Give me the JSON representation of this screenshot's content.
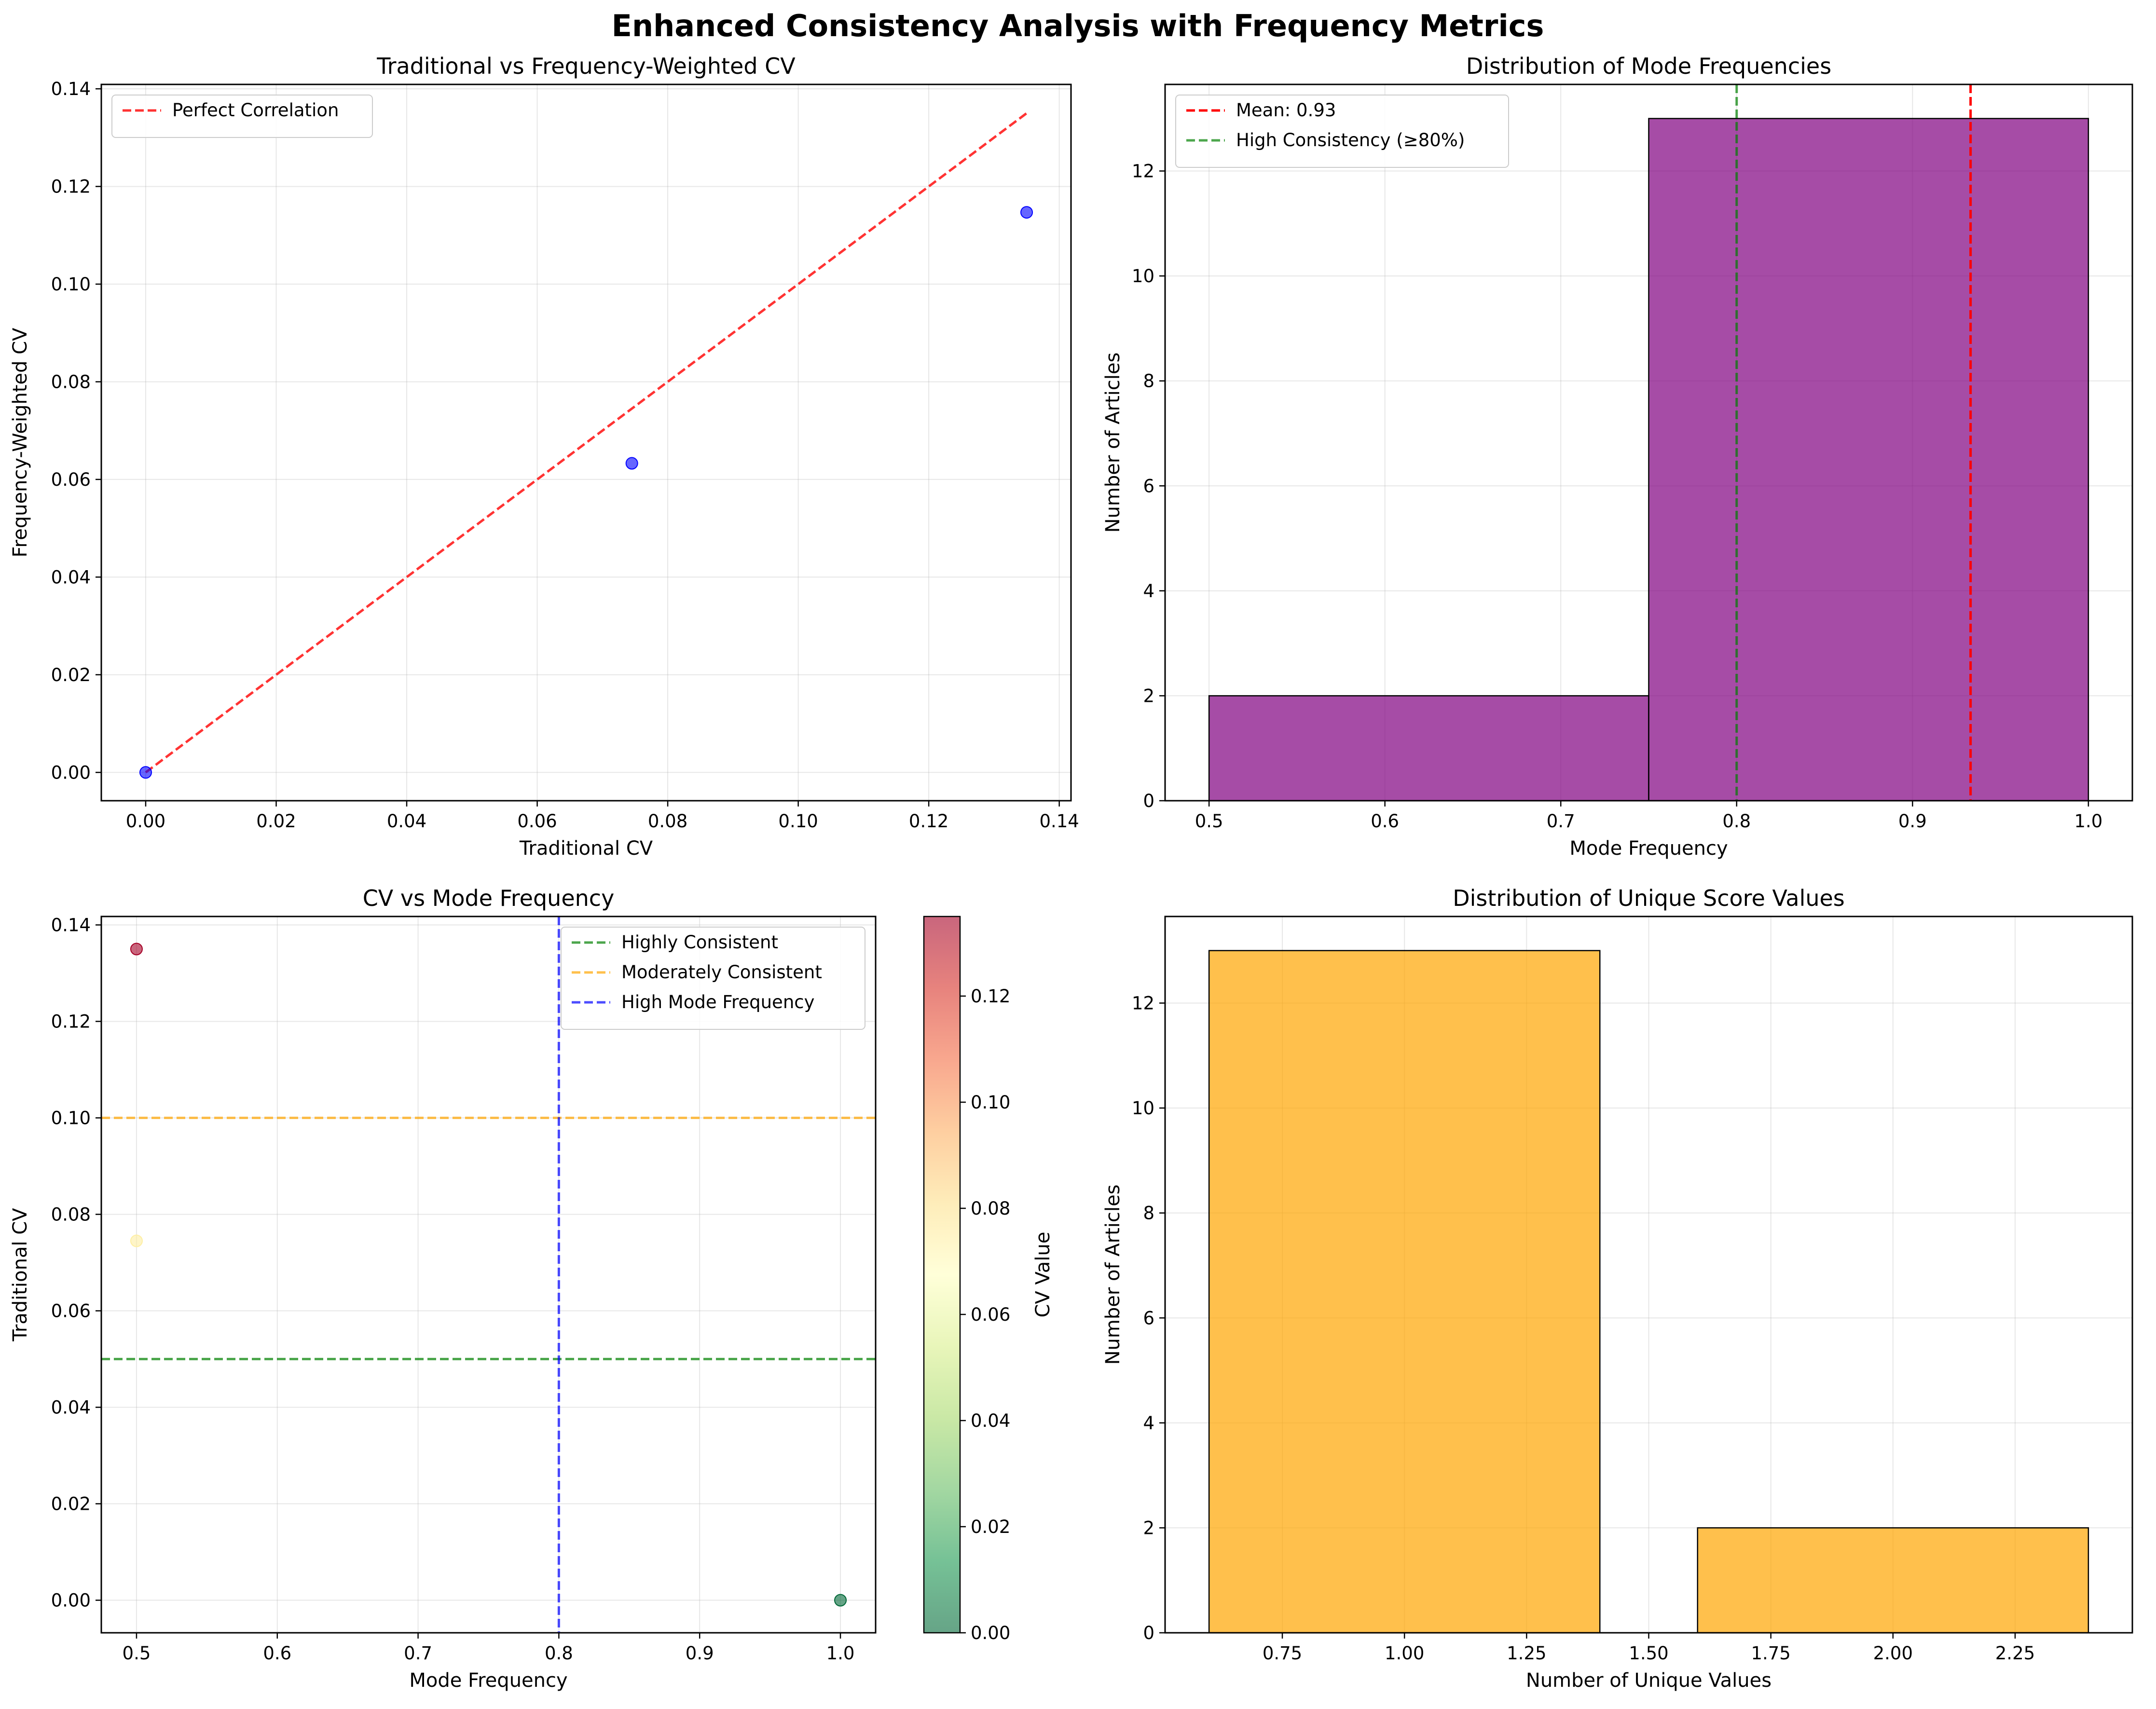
{
  "figure": {
    "suptitle": "Enhanced Consistency Analysis with Frequency Metrics"
  },
  "colors": {
    "blue_point": "#0000ff",
    "red_line": "#ff0000",
    "green_line": "#008000",
    "orange_line": "#ffa500",
    "blue_line": "#0000ff",
    "purple_bar": "#800080",
    "orange_bar": "#ffa500",
    "cmap": [
      "#006837",
      "#1a9850",
      "#66bd63",
      "#a6d96a",
      "#d9ef8b",
      "#ffffbf",
      "#fee08b",
      "#fdae61",
      "#f46d43",
      "#d73027",
      "#a50026"
    ]
  },
  "chart_data": [
    {
      "id": "p1",
      "type": "scatter",
      "title": "Traditional vs Frequency-Weighted CV",
      "xlabel": "Traditional CV",
      "ylabel": "Frequency-Weighted CV",
      "xlim": [
        -0.0068,
        0.1418
      ],
      "ylim": [
        -0.0058,
        0.1409
      ],
      "xticks": [
        0.0,
        0.02,
        0.04,
        0.06,
        0.08,
        0.1,
        0.12,
        0.14
      ],
      "xticklabels": [
        "0.00",
        "0.02",
        "0.04",
        "0.06",
        "0.08",
        "0.10",
        "0.12",
        "0.14"
      ],
      "yticks": [
        0.0,
        0.02,
        0.04,
        0.06,
        0.08,
        0.1,
        0.12,
        0.14
      ],
      "yticklabels": [
        "0.00",
        "0.02",
        "0.04",
        "0.06",
        "0.08",
        "0.10",
        "0.12",
        "0.14"
      ],
      "grid": true,
      "legend_position": "upper-left",
      "points": [
        {
          "x": 0.0,
          "y": 0.0
        },
        {
          "x": 0.0745,
          "y": 0.0633
        },
        {
          "x": 0.135,
          "y": 0.1147
        }
      ],
      "reference_line": {
        "label": "Perfect Correlation",
        "x": [
          0,
          0.135
        ],
        "y": [
          0,
          0.135
        ]
      }
    },
    {
      "id": "p2",
      "type": "bar",
      "title": "Distribution of Mode Frequencies",
      "xlabel": "Mode Frequency",
      "ylabel": "Number of Articles",
      "xlim": [
        0.475,
        1.025
      ],
      "ylim": [
        0,
        13.65
      ],
      "xticks": [
        0.5,
        0.6,
        0.7,
        0.8,
        0.9,
        1.0
      ],
      "xticklabels": [
        "0.5",
        "0.6",
        "0.7",
        "0.8",
        "0.9",
        "1.0"
      ],
      "yticks": [
        0,
        2,
        4,
        6,
        8,
        10,
        12
      ],
      "yticklabels": [
        "0",
        "2",
        "4",
        "6",
        "8",
        "10",
        "12"
      ],
      "grid": true,
      "legend_position": "upper-left",
      "bins": [
        {
          "start": 0.5,
          "end": 0.75,
          "count": 2
        },
        {
          "start": 0.75,
          "end": 1.0,
          "count": 13
        }
      ],
      "vlines": [
        {
          "x": 0.933,
          "label": "Mean: 0.93",
          "color": "red"
        },
        {
          "x": 0.8,
          "label": "High Consistency (≥80%)",
          "color": "green"
        }
      ]
    },
    {
      "id": "p3",
      "type": "scatter",
      "title": "CV vs Mode Frequency",
      "xlabel": "Mode Frequency",
      "ylabel": "Traditional CV",
      "xlim": [
        0.475,
        1.025
      ],
      "ylim": [
        -0.00675,
        0.14175
      ],
      "xticks": [
        0.5,
        0.6,
        0.7,
        0.8,
        0.9,
        1.0
      ],
      "xticklabels": [
        "0.5",
        "0.6",
        "0.7",
        "0.8",
        "0.9",
        "1.0"
      ],
      "yticks": [
        0.0,
        0.02,
        0.04,
        0.06,
        0.08,
        0.1,
        0.12,
        0.14
      ],
      "yticklabels": [
        "0.00",
        "0.02",
        "0.04",
        "0.06",
        "0.08",
        "0.10",
        "0.12",
        "0.14"
      ],
      "grid": true,
      "legend_position": "upper-right",
      "points": [
        {
          "x": 0.5,
          "y": 0.135
        },
        {
          "x": 0.5,
          "y": 0.0745
        },
        {
          "x": 1.0,
          "y": 0.0
        }
      ],
      "hlines": [
        {
          "y": 0.05,
          "label": "Highly Consistent",
          "color": "green"
        },
        {
          "y": 0.1,
          "label": "Moderately Consistent",
          "color": "orange"
        }
      ],
      "vlines": [
        {
          "x": 0.8,
          "label": "High Mode Frequency",
          "color": "blue"
        }
      ],
      "colorbar": {
        "label": "CV Value",
        "range": [
          0.0,
          0.135
        ],
        "ticks": [
          0.0,
          0.02,
          0.04,
          0.06,
          0.08,
          0.1,
          0.12
        ],
        "ticklabels": [
          "0.00",
          "0.02",
          "0.04",
          "0.06",
          "0.08",
          "0.10",
          "0.12"
        ]
      }
    },
    {
      "id": "p4",
      "type": "bar",
      "title": "Distribution of Unique Score Values",
      "xlabel": "Number of Unique Values",
      "ylabel": "Number of Articles",
      "xlim": [
        0.51,
        2.49
      ],
      "ylim": [
        0,
        13.65
      ],
      "xticks": [
        0.75,
        1.0,
        1.25,
        1.5,
        1.75,
        2.0,
        2.25
      ],
      "xticklabels": [
        "0.75",
        "1.00",
        "1.25",
        "1.50",
        "1.75",
        "2.00",
        "2.25"
      ],
      "yticks": [
        0,
        2,
        4,
        6,
        8,
        10,
        12
      ],
      "yticklabels": [
        "0",
        "2",
        "4",
        "6",
        "8",
        "10",
        "12"
      ],
      "grid": true,
      "bars": [
        {
          "x": 1,
          "width": 0.8,
          "count": 13
        },
        {
          "x": 2,
          "width": 0.8,
          "count": 2
        }
      ]
    }
  ]
}
